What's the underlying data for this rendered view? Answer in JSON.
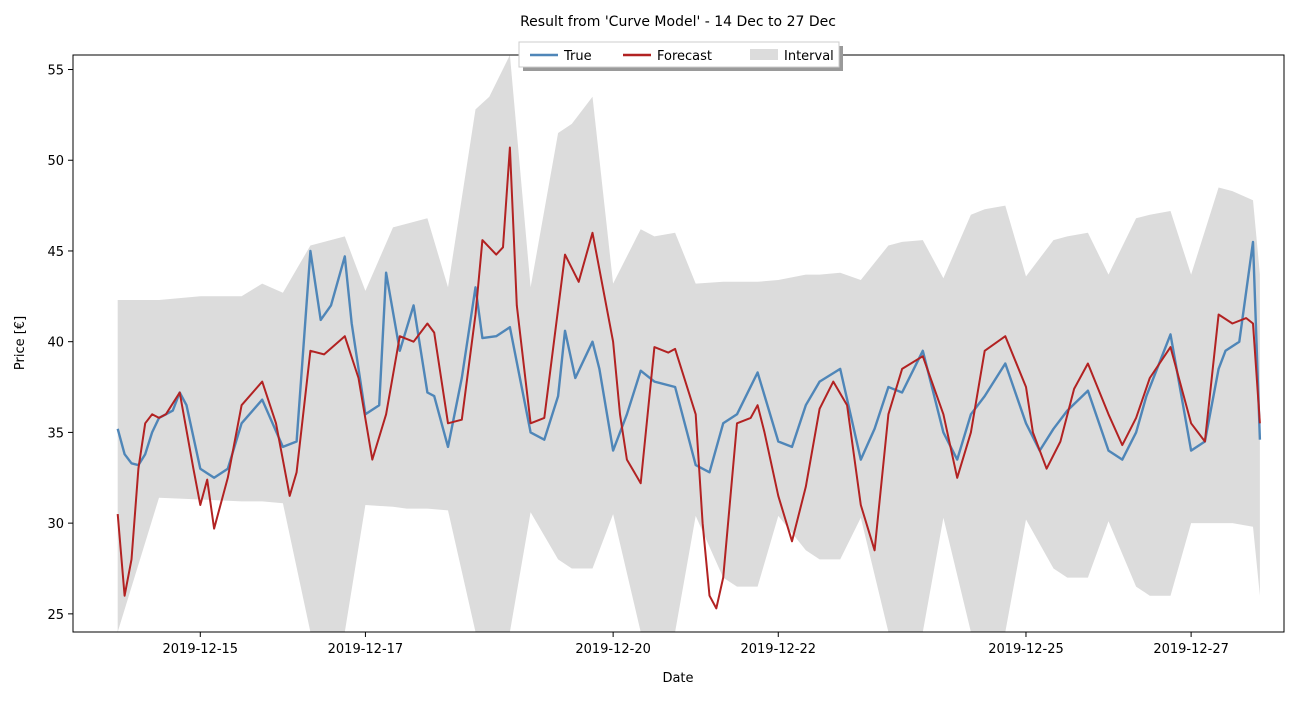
{
  "chart_data": {
    "type": "line",
    "title": "Result from 'Curve Model' - 14 Dec to 27 Dec",
    "xlabel": "Date",
    "ylabel": "Price [€]",
    "xlim": [
      "2019-12-13 11:00",
      "2019-12-28 03:00"
    ],
    "ylim": [
      24,
      55.8
    ],
    "grid": false,
    "legend_position": "top-center",
    "x_ticks": [
      "2019-12-15",
      "2019-12-17",
      "2019-12-20",
      "2019-12-22",
      "2019-12-25",
      "2019-12-27"
    ],
    "y_ticks": [
      25,
      30,
      35,
      40,
      45,
      50,
      55
    ],
    "colors": {
      "true": "#4f86b8",
      "forecast": "#b22222",
      "interval": "#dcdcdc"
    },
    "legend": [
      {
        "name": "True",
        "type": "line",
        "color": "#4f86b8"
      },
      {
        "name": "Forecast",
        "type": "line",
        "color": "#b22222"
      },
      {
        "name": "Interval",
        "type": "patch",
        "color": "#dcdcdc"
      }
    ],
    "series": [
      {
        "name": "True",
        "x": [
          "2019-12-14 00:00",
          "2019-12-14 02:00",
          "2019-12-14 04:00",
          "2019-12-14 06:00",
          "2019-12-14 08:00",
          "2019-12-14 10:00",
          "2019-12-14 12:00",
          "2019-12-14 14:00",
          "2019-12-14 16:00",
          "2019-12-14 18:00",
          "2019-12-14 20:00",
          "2019-12-15 00:00",
          "2019-12-15 04:00",
          "2019-12-15 08:00",
          "2019-12-15 12:00",
          "2019-12-15 18:00",
          "2019-12-16 00:00",
          "2019-12-16 04:00",
          "2019-12-16 08:00",
          "2019-12-16 11:00",
          "2019-12-16 14:00",
          "2019-12-16 18:00",
          "2019-12-16 20:00",
          "2019-12-17 00:00",
          "2019-12-17 04:00",
          "2019-12-17 06:00",
          "2019-12-17 10:00",
          "2019-12-17 14:00",
          "2019-12-17 18:00",
          "2019-12-17 20:00",
          "2019-12-18 00:00",
          "2019-12-18 04:00",
          "2019-12-18 08:00",
          "2019-12-18 10:00",
          "2019-12-18 14:00",
          "2019-12-18 18:00",
          "2019-12-19 00:00",
          "2019-12-19 04:00",
          "2019-12-19 08:00",
          "2019-12-19 10:00",
          "2019-12-19 13:00",
          "2019-12-19 18:00",
          "2019-12-19 20:00",
          "2019-12-20 00:00",
          "2019-12-20 04:00",
          "2019-12-20 08:00",
          "2019-12-20 12:00",
          "2019-12-20 18:00",
          "2019-12-21 00:00",
          "2019-12-21 04:00",
          "2019-12-21 08:00",
          "2019-12-21 12:00",
          "2019-12-21 18:00",
          "2019-12-22 00:00",
          "2019-12-22 04:00",
          "2019-12-22 08:00",
          "2019-12-22 12:00",
          "2019-12-22 18:00",
          "2019-12-23 00:00",
          "2019-12-23 04:00",
          "2019-12-23 08:00",
          "2019-12-23 12:00",
          "2019-12-23 18:00",
          "2019-12-24 00:00",
          "2019-12-24 04:00",
          "2019-12-24 08:00",
          "2019-12-24 12:00",
          "2019-12-24 18:00",
          "2019-12-25 00:00",
          "2019-12-25 04:00",
          "2019-12-25 08:00",
          "2019-12-25 12:00",
          "2019-12-25 18:00",
          "2019-12-26 00:00",
          "2019-12-26 04:00",
          "2019-12-26 08:00",
          "2019-12-26 11:00",
          "2019-12-26 18:00",
          "2019-12-27 00:00",
          "2019-12-27 04:00",
          "2019-12-27 08:00",
          "2019-12-27 10:00",
          "2019-12-27 14:00",
          "2019-12-27 18:00",
          "2019-12-27 20:00"
        ],
        "values": [
          35.2,
          33.8,
          33.3,
          33.2,
          33.8,
          35.0,
          35.8,
          36.0,
          36.2,
          37.2,
          36.5,
          33.0,
          32.5,
          33.0,
          35.5,
          36.8,
          34.2,
          34.5,
          45.0,
          41.2,
          42.0,
          44.7,
          41.0,
          36.0,
          36.5,
          43.8,
          39.5,
          42.0,
          37.2,
          37.0,
          34.2,
          38.0,
          43.0,
          40.2,
          40.3,
          40.8,
          35.0,
          34.6,
          37.0,
          40.6,
          38.0,
          40.0,
          38.5,
          34.0,
          36.0,
          38.4,
          37.8,
          37.5,
          33.2,
          32.8,
          35.5,
          36.0,
          38.3,
          34.5,
          34.2,
          36.5,
          37.8,
          38.5,
          33.5,
          35.2,
          37.5,
          37.2,
          39.5,
          35.0,
          33.5,
          36.0,
          37.0,
          38.8,
          35.5,
          34.0,
          35.2,
          36.2,
          37.3,
          34.0,
          33.5,
          35.0,
          37.0,
          40.4,
          34.0,
          34.5,
          38.5,
          39.5,
          40.0,
          45.5,
          34.6
        ]
      },
      {
        "name": "Forecast",
        "x": [
          "2019-12-14 00:00",
          "2019-12-14 02:00",
          "2019-12-14 04:00",
          "2019-12-14 06:00",
          "2019-12-14 08:00",
          "2019-12-14 10:00",
          "2019-12-14 12:00",
          "2019-12-14 14:00",
          "2019-12-14 18:00",
          "2019-12-14 22:00",
          "2019-12-15 00:00",
          "2019-12-15 02:00",
          "2019-12-15 04:00",
          "2019-12-15 08:00",
          "2019-12-15 12:00",
          "2019-12-15 18:00",
          "2019-12-15 22:00",
          "2019-12-16 02:00",
          "2019-12-16 04:00",
          "2019-12-16 08:00",
          "2019-12-16 12:00",
          "2019-12-16 18:00",
          "2019-12-16 22:00",
          "2019-12-17 02:00",
          "2019-12-17 06:00",
          "2019-12-17 10:00",
          "2019-12-17 14:00",
          "2019-12-17 18:00",
          "2019-12-17 20:00",
          "2019-12-18 00:00",
          "2019-12-18 04:00",
          "2019-12-18 08:00",
          "2019-12-18 10:00",
          "2019-12-18 14:00",
          "2019-12-18 16:00",
          "2019-12-18 18:00",
          "2019-12-18 20:00",
          "2019-12-19 00:00",
          "2019-12-19 04:00",
          "2019-12-19 10:00",
          "2019-12-19 14:00",
          "2019-12-19 18:00",
          "2019-12-20 00:00",
          "2019-12-20 02:00",
          "2019-12-20 04:00",
          "2019-12-20 08:00",
          "2019-12-20 12:00",
          "2019-12-20 16:00",
          "2019-12-20 18:00",
          "2019-12-21 00:00",
          "2019-12-21 02:00",
          "2019-12-21 04:00",
          "2019-12-21 06:00",
          "2019-12-21 08:00",
          "2019-12-21 12:00",
          "2019-12-21 16:00",
          "2019-12-21 18:00",
          "2019-12-21 20:00",
          "2019-12-22 00:00",
          "2019-12-22 04:00",
          "2019-12-22 08:00",
          "2019-12-22 12:00",
          "2019-12-22 16:00",
          "2019-12-22 20:00",
          "2019-12-23 00:00",
          "2019-12-23 04:00",
          "2019-12-23 08:00",
          "2019-12-23 12:00",
          "2019-12-23 18:00",
          "2019-12-24 00:00",
          "2019-12-24 04:00",
          "2019-12-24 08:00",
          "2019-12-24 12:00",
          "2019-12-24 18:00",
          "2019-12-25 00:00",
          "2019-12-25 02:00",
          "2019-12-25 06:00",
          "2019-12-25 10:00",
          "2019-12-25 14:00",
          "2019-12-25 18:00",
          "2019-12-26 00:00",
          "2019-12-26 04:00",
          "2019-12-26 08:00",
          "2019-12-26 12:00",
          "2019-12-26 18:00",
          "2019-12-27 00:00",
          "2019-12-27 04:00",
          "2019-12-27 08:00",
          "2019-12-27 12:00",
          "2019-12-27 16:00",
          "2019-12-27 18:00",
          "2019-12-27 20:00"
        ],
        "values": [
          30.5,
          26.0,
          28.0,
          33.0,
          35.5,
          36.0,
          35.8,
          36.0,
          37.2,
          33.0,
          31.0,
          32.4,
          29.7,
          32.5,
          36.5,
          37.8,
          35.5,
          31.5,
          32.8,
          39.5,
          39.3,
          40.3,
          38.0,
          33.5,
          36.0,
          40.3,
          40.0,
          41.0,
          40.5,
          35.5,
          35.7,
          41.5,
          45.6,
          44.8,
          45.2,
          50.7,
          42.0,
          35.5,
          35.8,
          44.8,
          43.3,
          46.0,
          40.0,
          36.0,
          33.5,
          32.2,
          39.7,
          39.4,
          39.6,
          36.0,
          30.0,
          26.0,
          25.3,
          27.0,
          35.5,
          35.8,
          36.5,
          35.0,
          31.5,
          29.0,
          32.0,
          36.3,
          37.8,
          36.5,
          31.0,
          28.5,
          36.0,
          38.5,
          39.2,
          36.0,
          32.5,
          35.0,
          39.5,
          40.3,
          37.5,
          35.0,
          33.0,
          34.5,
          37.4,
          38.8,
          36.0,
          34.3,
          35.8,
          38.0,
          39.7,
          35.5,
          34.5,
          41.5,
          41.0,
          41.3,
          41.0,
          35.5
        ]
      }
    ],
    "interval": {
      "name": "Interval",
      "x": [
        "2019-12-14 00:00",
        "2019-12-14 12:00",
        "2019-12-15 00:00",
        "2019-12-15 12:00",
        "2019-12-15 18:00",
        "2019-12-16 00:00",
        "2019-12-16 08:00",
        "2019-12-16 12:00",
        "2019-12-16 18:00",
        "2019-12-17 00:00",
        "2019-12-17 08:00",
        "2019-12-17 12:00",
        "2019-12-17 18:00",
        "2019-12-18 00:00",
        "2019-12-18 08:00",
        "2019-12-18 12:00",
        "2019-12-18 18:00",
        "2019-12-19 00:00",
        "2019-12-19 08:00",
        "2019-12-19 12:00",
        "2019-12-19 18:00",
        "2019-12-20 00:00",
        "2019-12-20 08:00",
        "2019-12-20 12:00",
        "2019-12-20 18:00",
        "2019-12-21 00:00",
        "2019-12-21 08:00",
        "2019-12-21 12:00",
        "2019-12-21 18:00",
        "2019-12-22 00:00",
        "2019-12-22 08:00",
        "2019-12-22 12:00",
        "2019-12-22 18:00",
        "2019-12-23 00:00",
        "2019-12-23 08:00",
        "2019-12-23 12:00",
        "2019-12-23 18:00",
        "2019-12-24 00:00",
        "2019-12-24 08:00",
        "2019-12-24 12:00",
        "2019-12-24 18:00",
        "2019-12-25 00:00",
        "2019-12-25 08:00",
        "2019-12-25 12:00",
        "2019-12-25 18:00",
        "2019-12-26 00:00",
        "2019-12-26 08:00",
        "2019-12-26 12:00",
        "2019-12-26 18:00",
        "2019-12-27 00:00",
        "2019-12-27 08:00",
        "2019-12-27 12:00",
        "2019-12-27 18:00",
        "2019-12-27 20:00"
      ],
      "upper": [
        42.3,
        42.3,
        42.5,
        42.5,
        43.2,
        42.7,
        45.3,
        45.5,
        45.8,
        42.8,
        46.3,
        46.5,
        46.8,
        43.0,
        52.8,
        53.5,
        55.8,
        43.0,
        51.5,
        52.0,
        53.5,
        43.2,
        46.2,
        45.8,
        46.0,
        43.2,
        43.3,
        43.3,
        43.3,
        43.4,
        43.7,
        43.7,
        43.8,
        43.4,
        45.3,
        45.5,
        45.6,
        43.5,
        47.0,
        47.3,
        47.5,
        43.6,
        45.6,
        45.8,
        46.0,
        43.7,
        46.8,
        47.0,
        47.2,
        43.7,
        48.5,
        48.3,
        47.8,
        43.7
      ],
      "lower": [
        24.0,
        31.4,
        31.3,
        31.2,
        31.2,
        31.1,
        24.0,
        24.0,
        24.0,
        31.0,
        30.9,
        30.8,
        30.8,
        30.7,
        24.0,
        24.0,
        24.0,
        30.6,
        28.0,
        27.5,
        27.5,
        30.5,
        24.0,
        24.0,
        24.0,
        30.4,
        27.0,
        26.5,
        26.5,
        30.4,
        28.5,
        28.0,
        28.0,
        30.3,
        24.0,
        24.0,
        24.0,
        30.3,
        24.0,
        24.0,
        24.0,
        30.2,
        27.5,
        27.0,
        27.0,
        30.1,
        26.5,
        26.0,
        26.0,
        30.0,
        30.0,
        30.0,
        29.8,
        26.0
      ]
    }
  }
}
